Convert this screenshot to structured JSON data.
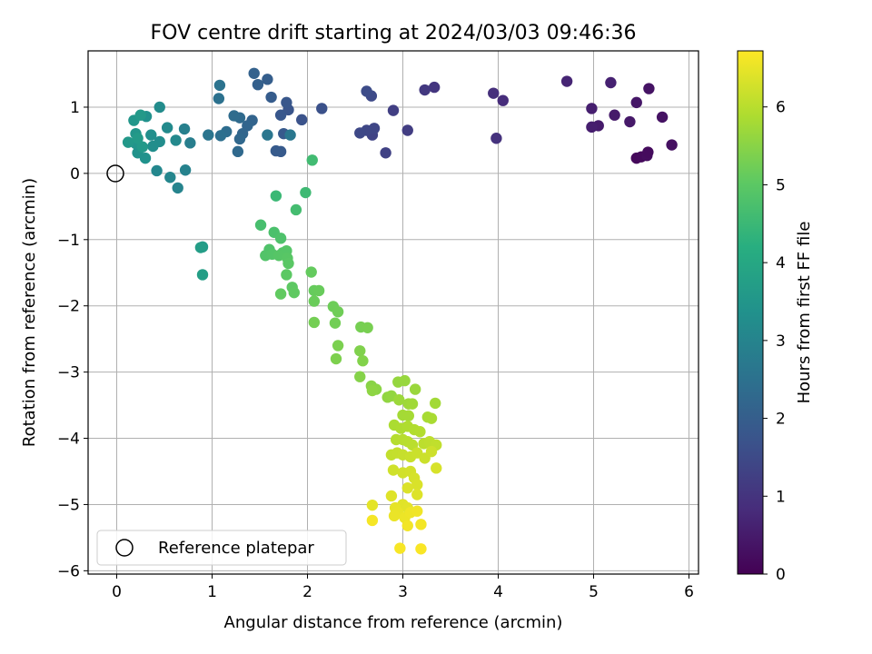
{
  "chart_data": {
    "type": "scatter",
    "title": "FOV centre drift starting at 2024/03/03 09:46:36",
    "xlabel": "Angular distance from reference (arcmin)",
    "ylabel": "Rotation from reference (arcmin)",
    "xlim": [
      -0.3,
      6.1
    ],
    "ylim": [
      -6.05,
      1.85
    ],
    "x_ticks": [
      0,
      1,
      2,
      3,
      4,
      5,
      6
    ],
    "x_tick_labels": [
      "0",
      "1",
      "2",
      "3",
      "4",
      "5",
      "6"
    ],
    "y_ticks": [
      1,
      0,
      -1,
      -2,
      -3,
      -4,
      -5,
      -6
    ],
    "y_tick_labels": [
      "1",
      "0",
      "−1",
      "−2",
      "−3",
      "−4",
      "−5",
      "−6"
    ],
    "grid": true,
    "colormap": "viridis",
    "colorbar": {
      "label": "Hours from first FF file",
      "range": [
        0,
        6.72
      ],
      "ticks": [
        0,
        1,
        2,
        3,
        4,
        5,
        6
      ],
      "tick_labels": [
        "0",
        "1",
        "2",
        "3",
        "4",
        "5",
        "6"
      ]
    },
    "legend": {
      "placement": "lower-left",
      "entries": [
        "Reference platepar"
      ]
    },
    "reference_point": {
      "x": 0,
      "y": 0
    },
    "series": [
      {
        "points": [
          [
            5.45,
            0.23,
            0.15
          ],
          [
            5.5,
            0.25,
            0.18
          ],
          [
            5.56,
            0.27,
            0.22
          ],
          [
            5.57,
            0.32,
            0.2
          ],
          [
            5.82,
            0.43,
            0.28
          ],
          [
            5.72,
            0.85,
            0.32
          ],
          [
            5.58,
            1.28,
            0.35
          ],
          [
            5.45,
            1.07,
            0.4
          ],
          [
            5.38,
            0.78,
            0.45
          ],
          [
            5.22,
            0.88,
            0.48
          ],
          [
            5.05,
            0.72,
            0.5
          ],
          [
            4.98,
            0.7,
            0.55
          ],
          [
            4.98,
            0.98,
            0.58
          ],
          [
            5.18,
            1.37,
            0.62
          ],
          [
            4.72,
            1.39,
            0.68
          ],
          [
            4.05,
            1.1,
            0.85
          ],
          [
            3.95,
            1.21,
            0.9
          ],
          [
            3.98,
            0.53,
            0.95
          ],
          [
            3.33,
            1.3,
            1.05
          ],
          [
            3.23,
            1.26,
            1.1
          ],
          [
            3.05,
            0.65,
            1.2
          ],
          [
            2.9,
            0.95,
            1.25
          ],
          [
            2.82,
            0.31,
            1.3
          ],
          [
            2.68,
            0.58,
            1.35
          ],
          [
            2.7,
            0.68,
            1.4
          ],
          [
            2.62,
            0.65,
            1.42
          ],
          [
            2.55,
            0.61,
            1.45
          ],
          [
            2.67,
            1.17,
            1.5
          ],
          [
            2.62,
            1.24,
            1.55
          ],
          [
            2.15,
            0.98,
            1.65
          ],
          [
            1.94,
            0.81,
            1.7
          ],
          [
            1.8,
            0.96,
            1.75
          ],
          [
            1.78,
            1.07,
            1.8
          ],
          [
            1.72,
            0.88,
            1.82
          ],
          [
            1.75,
            0.6,
            1.88
          ],
          [
            1.72,
            0.33,
            1.9
          ],
          [
            1.67,
            0.34,
            1.92
          ],
          [
            1.62,
            1.15,
            1.95
          ],
          [
            1.58,
            1.42,
            2.0
          ],
          [
            1.48,
            1.34,
            2.05
          ],
          [
            1.44,
            1.51,
            2.1
          ],
          [
            1.42,
            0.8,
            2.15
          ],
          [
            1.37,
            0.72,
            2.18
          ],
          [
            1.32,
            0.6,
            2.2
          ],
          [
            1.29,
            0.52,
            2.25
          ],
          [
            1.27,
            0.33,
            2.28
          ],
          [
            1.29,
            0.84,
            2.3
          ],
          [
            1.23,
            0.87,
            2.35
          ],
          [
            1.15,
            0.63,
            2.4
          ],
          [
            1.09,
            0.57,
            2.45
          ],
          [
            1.07,
            1.13,
            2.5
          ],
          [
            1.08,
            1.33,
            2.55
          ],
          [
            0.96,
            0.58,
            2.6
          ],
          [
            1.58,
            0.58,
            2.62
          ],
          [
            1.82,
            0.58,
            2.65
          ],
          [
            0.77,
            0.46,
            2.85
          ],
          [
            0.71,
            0.67,
            2.9
          ],
          [
            0.72,
            0.05,
            2.95
          ],
          [
            0.64,
            -0.22,
            3.0
          ],
          [
            0.56,
            -0.06,
            3.05
          ],
          [
            0.42,
            0.04,
            3.1
          ],
          [
            0.62,
            0.5,
            3.15
          ],
          [
            0.53,
            0.69,
            3.18
          ],
          [
            0.45,
            1.0,
            3.22
          ],
          [
            0.45,
            0.48,
            3.25
          ],
          [
            0.38,
            0.41,
            3.28
          ],
          [
            0.36,
            0.58,
            3.3
          ],
          [
            0.31,
            0.86,
            3.35
          ],
          [
            0.3,
            0.23,
            3.38
          ],
          [
            0.22,
            0.31,
            3.4
          ],
          [
            0.2,
            0.45,
            3.45
          ],
          [
            0.2,
            0.6,
            3.48
          ],
          [
            0.18,
            0.8,
            3.5
          ],
          [
            0.12,
            0.47,
            3.55
          ],
          [
            0.25,
            0.88,
            3.58
          ],
          [
            0.27,
            0.4,
            3.6
          ],
          [
            0.22,
            0.53,
            3.62
          ],
          [
            0.9,
            -1.11,
            3.65
          ],
          [
            0.88,
            -1.12,
            3.7
          ],
          [
            0.9,
            -1.53,
            3.75
          ],
          [
            2.05,
            0.2,
            4.6
          ],
          [
            1.98,
            -0.29,
            4.55
          ],
          [
            1.67,
            -0.34,
            4.5
          ],
          [
            1.88,
            -0.55,
            4.65
          ],
          [
            1.51,
            -0.78,
            4.7
          ],
          [
            1.65,
            -0.89,
            4.75
          ],
          [
            1.72,
            -0.98,
            4.8
          ],
          [
            1.6,
            -1.15,
            4.82
          ],
          [
            1.56,
            -1.24,
            4.85
          ],
          [
            1.63,
            -1.22,
            4.87
          ],
          [
            1.74,
            -1.2,
            4.88
          ],
          [
            1.78,
            -1.17,
            4.9
          ],
          [
            1.7,
            -1.24,
            4.92
          ],
          [
            1.79,
            -1.28,
            4.95
          ],
          [
            1.8,
            -1.36,
            4.97
          ],
          [
            1.78,
            -1.53,
            5.0
          ],
          [
            1.84,
            -1.72,
            5.02
          ],
          [
            1.86,
            -1.8,
            5.05
          ],
          [
            1.72,
            -1.82,
            5.07
          ],
          [
            2.04,
            -1.49,
            5.1
          ],
          [
            2.07,
            -1.77,
            5.12
          ],
          [
            2.12,
            -1.77,
            5.15
          ],
          [
            2.07,
            -1.93,
            5.17
          ],
          [
            2.27,
            -2.01,
            5.2
          ],
          [
            2.32,
            -2.09,
            5.22
          ],
          [
            2.29,
            -2.26,
            5.25
          ],
          [
            2.07,
            -2.25,
            5.27
          ],
          [
            2.56,
            -2.32,
            5.3
          ],
          [
            2.63,
            -2.33,
            5.32
          ],
          [
            2.32,
            -2.6,
            5.35
          ],
          [
            2.3,
            -2.8,
            5.37
          ],
          [
            2.55,
            -2.68,
            5.4
          ],
          [
            2.58,
            -2.83,
            5.42
          ],
          [
            2.55,
            -3.07,
            5.45
          ],
          [
            2.67,
            -3.21,
            5.5
          ],
          [
            2.72,
            -3.26,
            5.52
          ],
          [
            2.68,
            -3.28,
            5.55
          ],
          [
            2.84,
            -3.38,
            5.58
          ],
          [
            2.88,
            -3.36,
            5.6
          ],
          [
            2.95,
            -3.15,
            5.62
          ],
          [
            3.02,
            -3.13,
            5.65
          ],
          [
            3.13,
            -3.26,
            5.68
          ],
          [
            2.96,
            -3.42,
            5.7
          ],
          [
            3.06,
            -3.48,
            5.72
          ],
          [
            3.1,
            -3.48,
            5.74
          ],
          [
            3.34,
            -3.47,
            5.76
          ],
          [
            3.0,
            -3.65,
            5.78
          ],
          [
            3.06,
            -3.66,
            5.8
          ],
          [
            3.26,
            -3.68,
            5.82
          ],
          [
            3.3,
            -3.7,
            5.84
          ],
          [
            2.91,
            -3.8,
            5.86
          ],
          [
            2.98,
            -3.85,
            5.88
          ],
          [
            3.05,
            -3.82,
            5.9
          ],
          [
            3.12,
            -3.87,
            5.92
          ],
          [
            3.18,
            -3.9,
            5.94
          ],
          [
            2.93,
            -4.02,
            5.96
          ],
          [
            3.0,
            -4.02,
            5.98
          ],
          [
            3.05,
            -4.05,
            6.0
          ],
          [
            3.1,
            -4.1,
            6.02
          ],
          [
            3.22,
            -4.08,
            6.04
          ],
          [
            3.28,
            -4.05,
            6.06
          ],
          [
            3.35,
            -4.1,
            6.08
          ],
          [
            2.88,
            -4.25,
            6.1
          ],
          [
            2.94,
            -4.22,
            6.12
          ],
          [
            3.0,
            -4.25,
            6.14
          ],
          [
            3.08,
            -4.28,
            6.16
          ],
          [
            3.15,
            -4.22,
            6.18
          ],
          [
            3.23,
            -4.3,
            6.2
          ],
          [
            3.3,
            -4.2,
            6.22
          ],
          [
            2.9,
            -4.48,
            6.24
          ],
          [
            3.0,
            -4.52,
            6.26
          ],
          [
            3.08,
            -4.5,
            6.28
          ],
          [
            3.12,
            -4.6,
            6.3
          ],
          [
            3.35,
            -4.45,
            6.32
          ],
          [
            3.15,
            -4.7,
            6.34
          ],
          [
            3.05,
            -4.75,
            6.36
          ],
          [
            3.15,
            -4.85,
            6.38
          ],
          [
            2.88,
            -4.87,
            6.4
          ],
          [
            3.0,
            -5.0,
            6.42
          ],
          [
            3.05,
            -5.05,
            6.44
          ],
          [
            2.68,
            -5.01,
            6.46
          ],
          [
            2.92,
            -5.05,
            6.48
          ],
          [
            2.95,
            -5.12,
            6.5
          ],
          [
            2.91,
            -5.17,
            6.52
          ],
          [
            3.02,
            -5.2,
            6.54
          ],
          [
            3.08,
            -5.12,
            6.56
          ],
          [
            3.15,
            -5.1,
            6.58
          ],
          [
            3.05,
            -5.32,
            6.6
          ],
          [
            3.19,
            -5.3,
            6.62
          ],
          [
            2.68,
            -5.24,
            6.64
          ],
          [
            2.97,
            -5.66,
            6.66
          ],
          [
            3.19,
            -5.67,
            6.68
          ]
        ]
      }
    ]
  }
}
